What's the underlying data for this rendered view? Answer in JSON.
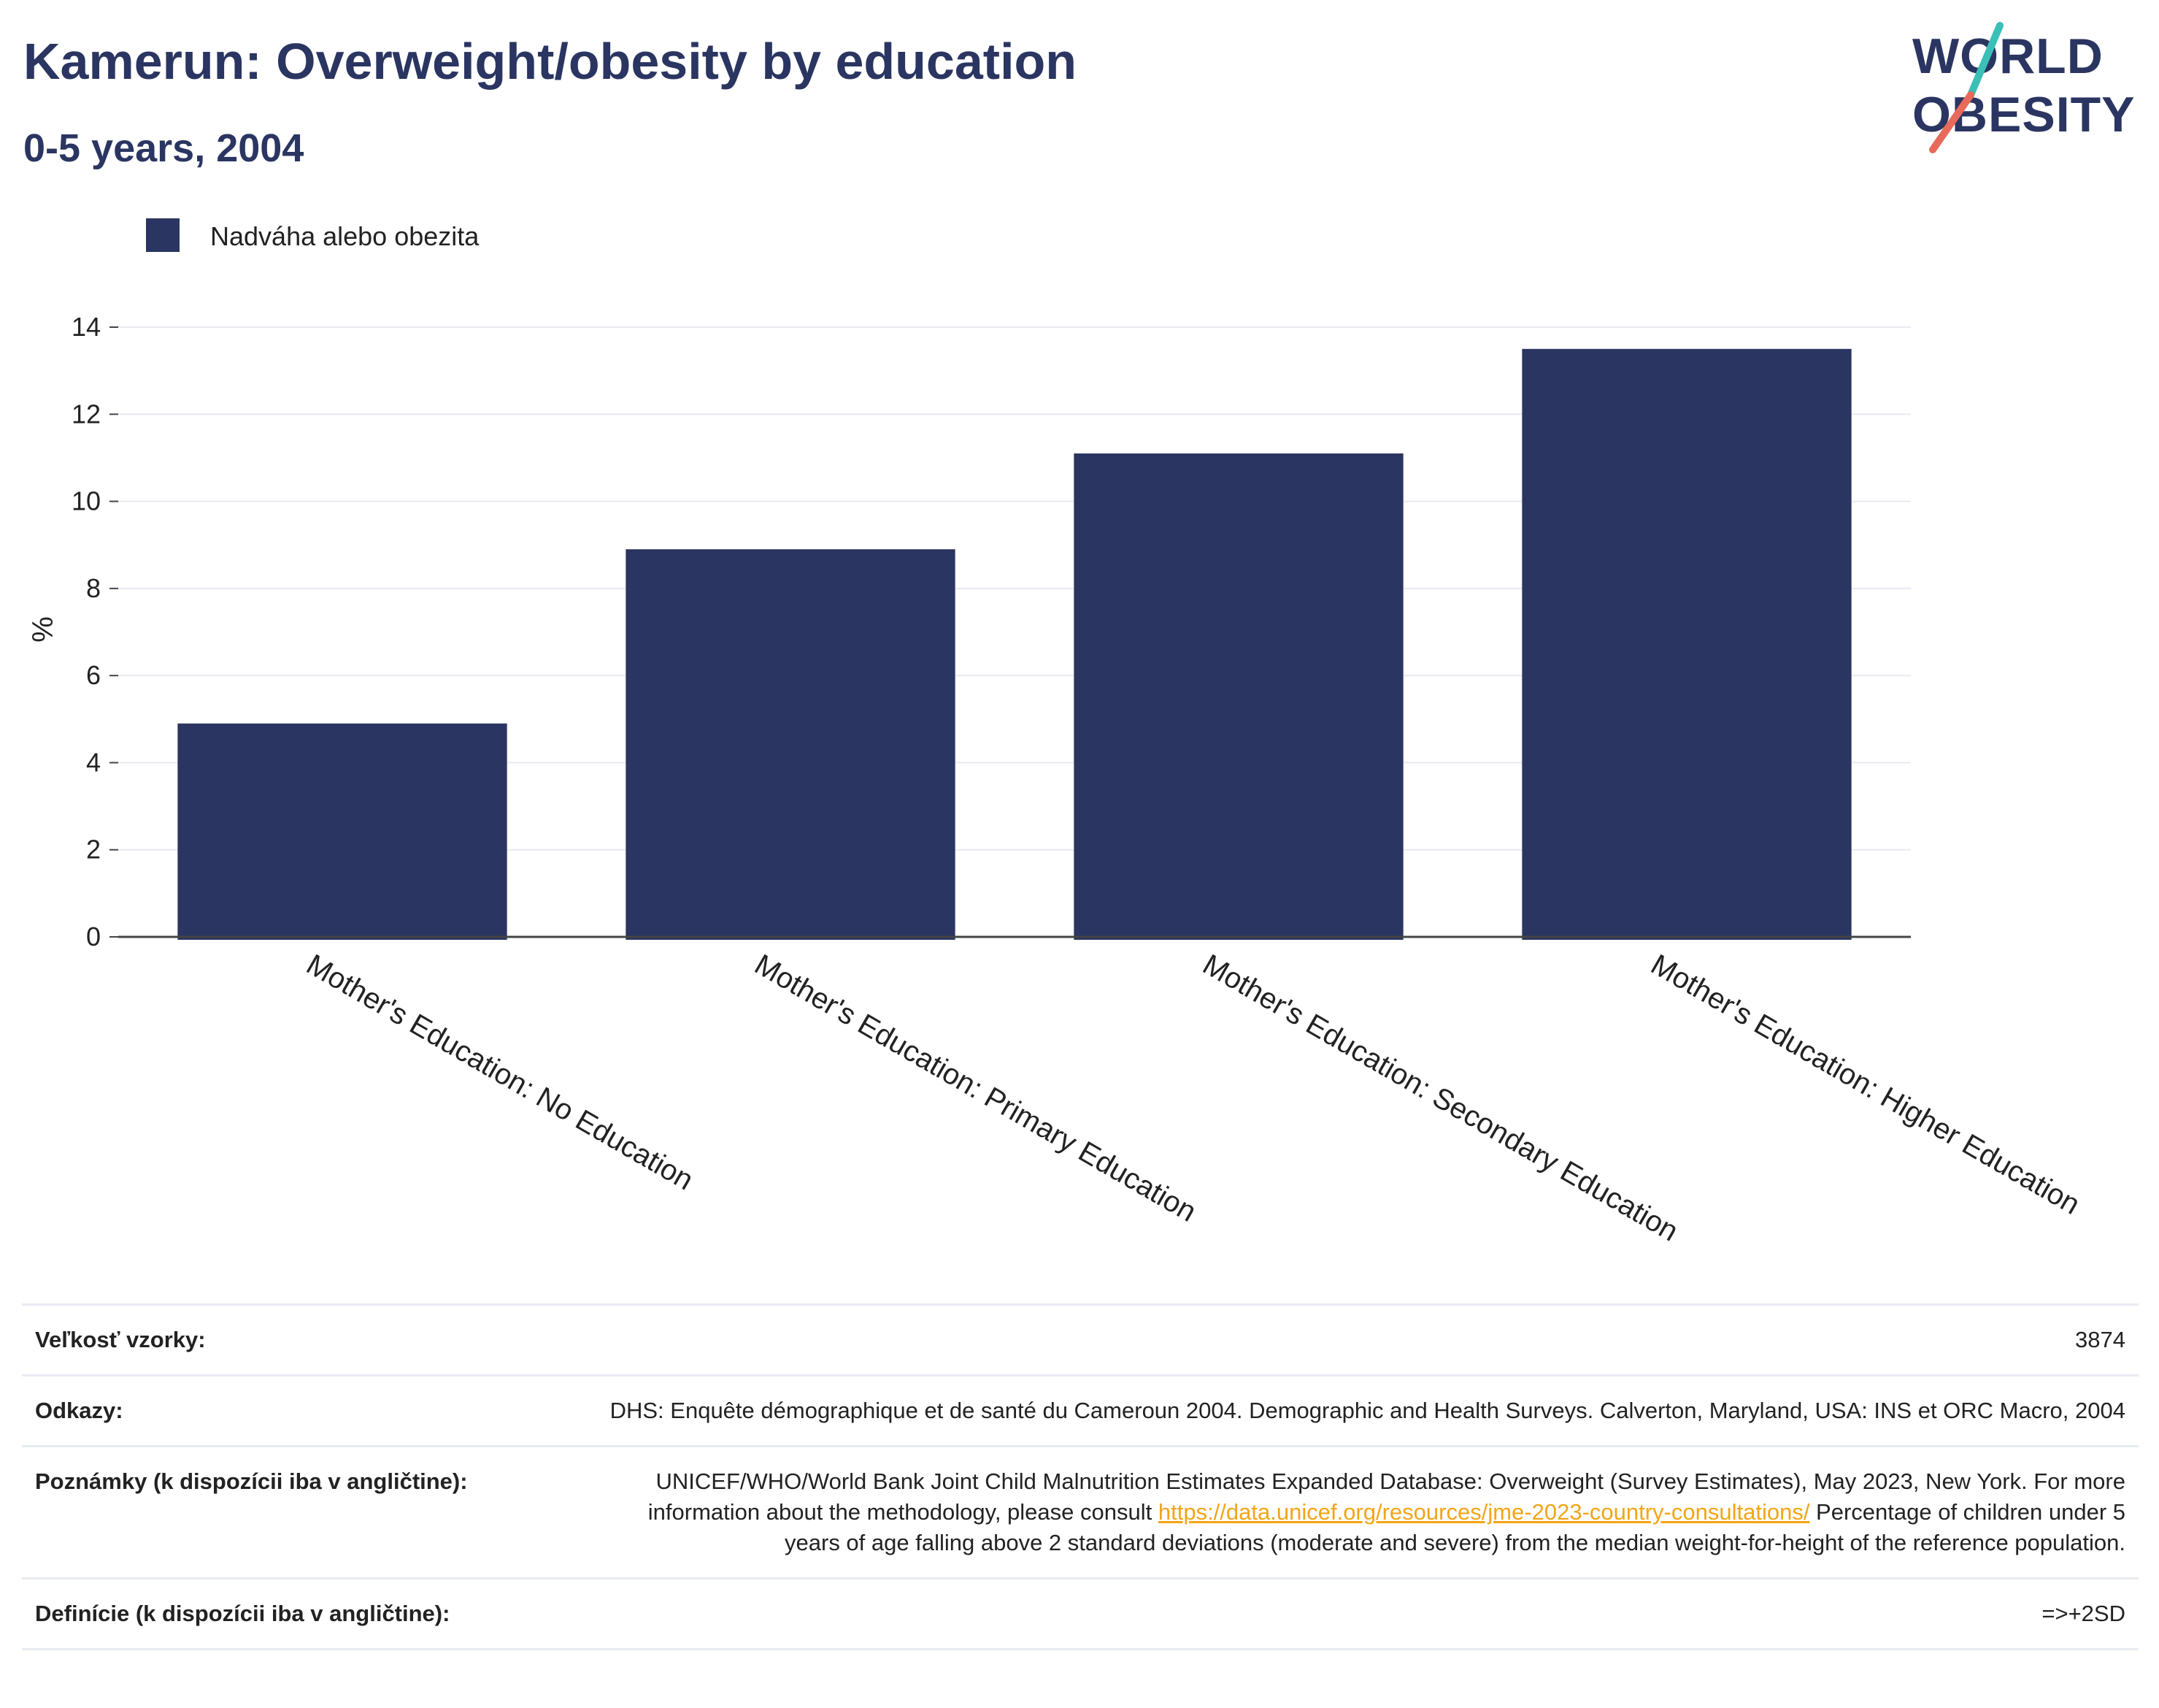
{
  "header": {
    "title": "Kamerun: Overweight/obesity by education",
    "subtitle": "0-5 years, 2004"
  },
  "logo": {
    "line1": "WORLD",
    "line2": "OBESITY",
    "accent_colors": [
      "#3bbfb7",
      "#e86a5a"
    ]
  },
  "chart_data": {
    "type": "bar",
    "categories": [
      "Mother's Education: No Education",
      "Mother's Education: Primary Education",
      "Mother's Education: Secondary Education",
      "Mother's Education: Higher Education"
    ],
    "series": [
      {
        "name": "Nadváha alebo obezita",
        "values": [
          4.9,
          8.9,
          11.1,
          13.5
        ],
        "color": "#2a3561"
      }
    ],
    "ylabel": "%",
    "ylim": [
      0,
      14
    ],
    "yticks": [
      0,
      2,
      4,
      6,
      8,
      10,
      12,
      14
    ],
    "grid": true,
    "legend": "top-left"
  },
  "info": {
    "sample_label": "Veľkosť vzorky:",
    "sample_value": "3874",
    "refs_label": "Odkazy:",
    "refs_value": "DHS: Enquête démographique et de santé du Cameroun 2004. Demographic and Health Surveys. Calverton, Maryland, USA: INS et ORC Macro, 2004",
    "notes_label": "Poznámky (k dispozícii iba v angličtine):",
    "notes_before": "UNICEF/WHO/World Bank Joint Child Malnutrition Estimates Expanded Database: Overweight (Survey Estimates), May 2023, New York. For more information about the methodology, please consult ",
    "notes_link": "https://data.unicef.org/resources/jme-2023-country-consultations/",
    "notes_after": " Percentage of children under 5 years of age falling above 2 standard deviations (moderate and severe) from the median weight-for-height of the reference population.",
    "defs_label": "Definície (k dispozícii iba v angličtine):",
    "defs_value": "=>+2SD"
  }
}
